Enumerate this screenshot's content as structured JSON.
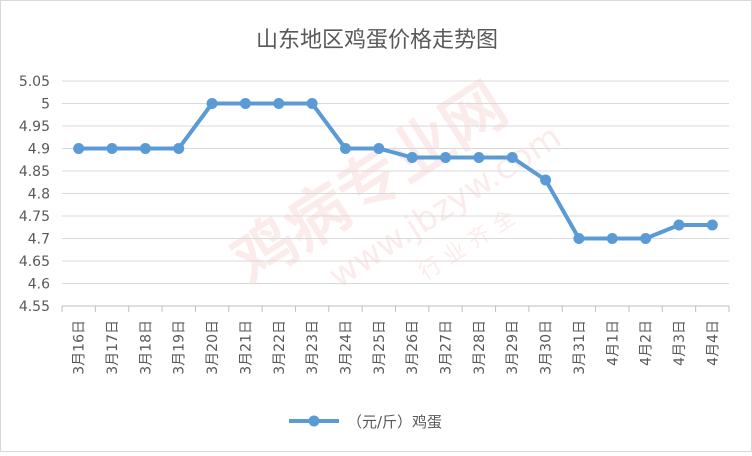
{
  "chart_data": {
    "type": "line",
    "title": "山东地区鸡蛋价格走势图",
    "categories": [
      "3月16日",
      "3月17日",
      "3月18日",
      "3月19日",
      "3月20日",
      "3月21日",
      "3月22日",
      "3月23日",
      "3月24日",
      "3月25日",
      "3月26日",
      "3月27日",
      "3月28日",
      "3月29日",
      "3月30日",
      "3月31日",
      "4月1日",
      "4月2日",
      "4月3日",
      "4月4日"
    ],
    "series": [
      {
        "name": "（元/斤）鸡蛋",
        "values": [
          4.9,
          4.9,
          4.9,
          4.9,
          5.0,
          5.0,
          5.0,
          5.0,
          4.9,
          4.9,
          4.88,
          4.88,
          4.88,
          4.88,
          4.83,
          4.7,
          4.7,
          4.7,
          4.73,
          4.73
        ]
      }
    ],
    "ylim": [
      4.55,
      5.05
    ],
    "yticks": [
      "5.05",
      "5",
      "4.95",
      "4.9",
      "4.85",
      "4.8",
      "4.75",
      "4.7",
      "4.65",
      "4.6",
      "4.55"
    ],
    "grid": true,
    "legend_position": "bottom",
    "line_color": "#5b9bd5",
    "xlabel": "",
    "ylabel": ""
  },
  "watermark": {
    "text_main": "鸡病专业网",
    "text_url": "www.jbzyw.com",
    "text_small": "行 业 齐 全"
  }
}
